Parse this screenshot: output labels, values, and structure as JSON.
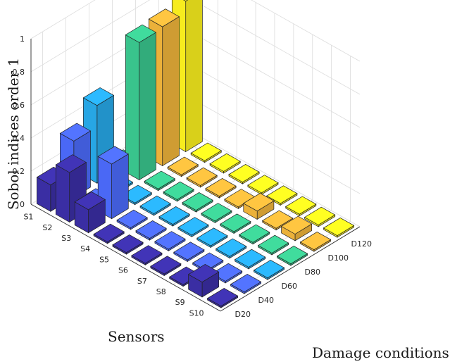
{
  "chart_data": {
    "type": "bar3d",
    "zlabel": "Sobol indices order 1",
    "xlabel": "Sensors",
    "ylabel": "Damage conditions",
    "zlim": [
      0,
      1
    ],
    "z_ticks": [
      "0",
      "0.2",
      "0.4",
      "0.6",
      "0.8",
      "1"
    ],
    "sensors": [
      "S1",
      "S2",
      "S3",
      "S4",
      "S5",
      "S6",
      "S7",
      "S8",
      "S9",
      "S10"
    ],
    "damage_conditions": [
      "D20",
      "D40",
      "D60",
      "D80",
      "D100",
      "D120"
    ],
    "grid": true,
    "series": [
      {
        "name": "D20",
        "color": "#3a2ea3",
        "values": [
          0.16,
          0.3,
          0.14,
          0.01,
          0.01,
          0.01,
          0.01,
          0.01,
          0.09,
          0.01
        ]
      },
      {
        "name": "D40",
        "color": "#4a68f5",
        "values": [
          0.34,
          0.01,
          0.33,
          0.01,
          0.01,
          0.01,
          0.01,
          0.01,
          0.01,
          0.01
        ]
      },
      {
        "name": "D60",
        "color": "#27a6e4",
        "values": [
          0.47,
          0.01,
          0.01,
          0.01,
          0.01,
          0.01,
          0.01,
          0.01,
          0.01,
          0.01
        ]
      },
      {
        "name": "D80",
        "color": "#39c48c",
        "values": [
          0.01,
          0.83,
          0.01,
          0.01,
          0.01,
          0.01,
          0.01,
          0.01,
          0.01,
          0.01
        ]
      },
      {
        "name": "D100",
        "color": "#ebb13a",
        "values": [
          0.01,
          0.84,
          0.01,
          0.01,
          0.01,
          0.01,
          0.05,
          0.01,
          0.04,
          0.01
        ]
      },
      {
        "name": "D120",
        "color": "#f7ec1e",
        "values": [
          0.01,
          0.91,
          0.01,
          0.01,
          0.01,
          0.01,
          0.01,
          0.01,
          0.01,
          0.01
        ]
      }
    ]
  }
}
